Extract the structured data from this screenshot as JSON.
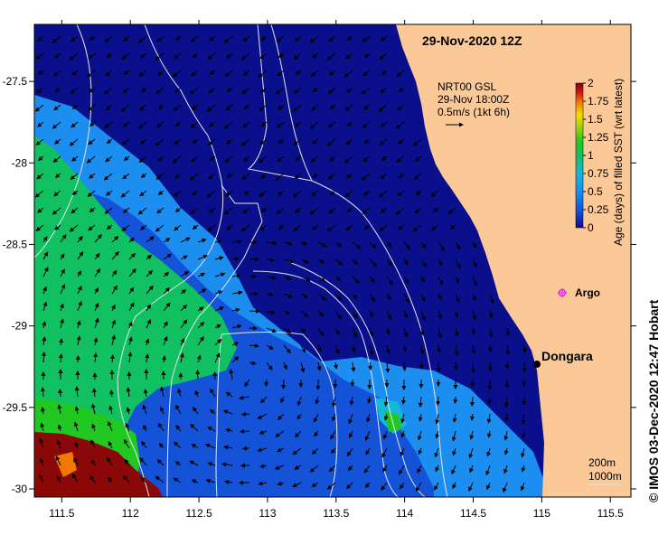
{
  "map": {
    "title": "29-Nov-2020 12Z",
    "x_ticks": [
      "111.5",
      "112",
      "112.5",
      "113",
      "113.5",
      "114",
      "114.5",
      "115",
      "115.5"
    ],
    "y_ticks": [
      "-27.5",
      "-28",
      "-28.5",
      "-29",
      "-29.5",
      "-30"
    ],
    "x_range": [
      111.3,
      115.65
    ],
    "y_range": [
      -30.05,
      -27.15
    ],
    "land_color": "#fbc898",
    "ocean_color": "#0a0f8c"
  },
  "current_legend": {
    "line1": "NRT00 GSL",
    "line2": "29-Nov 18:00Z",
    "line3": "0.5m/s (1kt 6h)"
  },
  "colorbar": {
    "label": "Age (days) of filled SST (wrt latest)",
    "ticks": [
      "2",
      "1.75",
      "1.5",
      "1.25",
      "1",
      "0.75",
      "0.5",
      "0.25",
      "0"
    ],
    "colors": [
      "#0a0f8c",
      "#1452d8",
      "#1b8ef0",
      "#15b9d8",
      "#11c060",
      "#22c822",
      "#a8d010",
      "#f0e000",
      "#f07800",
      "#d01010",
      "#7a0808"
    ]
  },
  "places": {
    "argo_label": "Argo",
    "dongara_label": "Dongara",
    "argo_color": "#e040e0"
  },
  "scale_legend": {
    "label1": "200m",
    "label2": "1000m"
  },
  "credit": "© IMOS 03-Dec-2020 12:47 Hobart"
}
